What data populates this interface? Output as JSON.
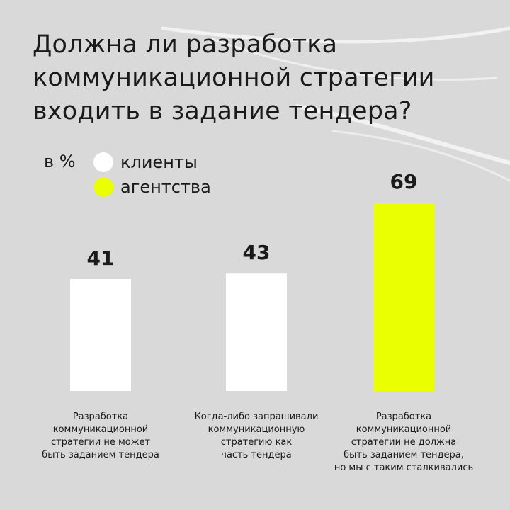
{
  "title_lines": [
    "Должна ли разработка",
    "коммуникационной стратегии",
    "входить в задание тендера?"
  ],
  "unit_label": "в %",
  "legend": [
    {
      "label": "клиенты",
      "color": "#ffffff"
    },
    {
      "label": "агентства",
      "color": "#eaff00"
    }
  ],
  "chart_data": {
    "type": "bar",
    "title": "Должна ли разработка коммуникационной стратегии входить в задание тендера?",
    "categories": [
      [
        "Разработка",
        "коммуникационной",
        "стратегии не может",
        "быть заданием тендера"
      ],
      [
        "Когда-либо запрашивали",
        "коммуникационную",
        "стратегию как",
        "часть тендера"
      ],
      [
        "Разработка",
        "коммуникационной",
        "стратегии не должна",
        "быть заданием тендера,",
        "но мы с таким сталкивались"
      ]
    ],
    "values": [
      41,
      43,
      69
    ],
    "series_of_bar": [
      "клиенты",
      "клиенты",
      "агентства"
    ],
    "colors": [
      "#ffffff",
      "#ffffff",
      "#eaff00"
    ],
    "unit": "в %",
    "grid": false,
    "axes_visible": false,
    "legend_placement": "top-left"
  }
}
